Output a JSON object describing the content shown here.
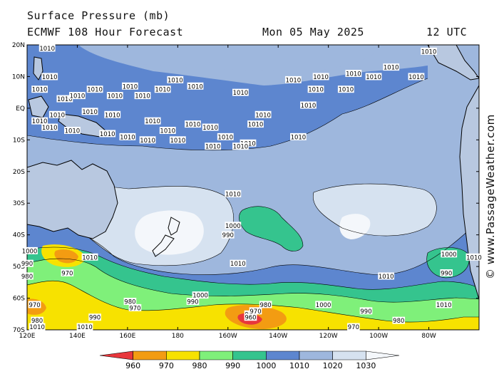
{
  "header": {
    "title": "Surface Pressure (mb)",
    "model": "ECMWF 108 Hour Forecast",
    "date": "Mon 05 May 2025",
    "time": "12 UTC"
  },
  "credit": "© www.PassageWeather.com",
  "lat_labels": [
    "20N",
    "10N",
    "EQ",
    "10S",
    "20S",
    "30S",
    "40S",
    "50S",
    "60S",
    "70S"
  ],
  "lon_labels": [
    "120E",
    "140E",
    "160E",
    "180",
    "160W",
    "140W",
    "120W",
    "100W",
    "80W"
  ],
  "colorbar": {
    "labels": [
      "960",
      "970",
      "980",
      "990",
      "1000",
      "1010",
      "1020",
      "1030"
    ],
    "colors": [
      "#e8373c",
      "#f39c12",
      "#f7e200",
      "#7ff07a",
      "#35c48e",
      "#5d86cf",
      "#9eb7dd",
      "#d6e2f0",
      "#f4f7fb"
    ]
  },
  "contour_labels": [
    {
      "text": "1010",
      "lon": 128,
      "lat": 19
    },
    {
      "text": "1010",
      "lon": 129,
      "lat": 10
    },
    {
      "text": "1010",
      "lon": 125,
      "lat": 6
    },
    {
      "text": "1010",
      "lon": 135,
      "lat": 3
    },
    {
      "text": "1010",
      "lon": 140,
      "lat": 4
    },
    {
      "text": "1010",
      "lon": 132,
      "lat": -2
    },
    {
      "text": "1010",
      "lon": 125,
      "lat": -4
    },
    {
      "text": "1010",
      "lon": 129,
      "lat": -6
    },
    {
      "text": "1010",
      "lon": 138,
      "lat": -7
    },
    {
      "text": "1010",
      "lon": 145,
      "lat": -1
    },
    {
      "text": "1010",
      "lon": 154,
      "lat": -2
    },
    {
      "text": "1010",
      "lon": 147,
      "lat": 6
    },
    {
      "text": "1010",
      "lon": 155,
      "lat": 4
    },
    {
      "text": "1010",
      "lon": 161,
      "lat": 7
    },
    {
      "text": "1010",
      "lon": 166,
      "lat": 4
    },
    {
      "text": "1010",
      "lon": 174,
      "lat": 6
    },
    {
      "text": "1010",
      "lon": 170,
      "lat": -4
    },
    {
      "text": "1010",
      "lon": 176,
      "lat": -7
    },
    {
      "text": "1010",
      "lon": 152,
      "lat": -8
    },
    {
      "text": "1010",
      "lon": 160,
      "lat": -9
    },
    {
      "text": "1010",
      "lon": 168,
      "lat": -10
    },
    {
      "text": "1010",
      "lon": 186,
      "lat": -5
    },
    {
      "text": "1010",
      "lon": 193,
      "lat": -6
    },
    {
      "text": "1010",
      "lon": 199,
      "lat": -9
    },
    {
      "text": "1010",
      "lon": 208,
      "lat": -11
    },
    {
      "text": "1010",
      "lon": 211,
      "lat": -5
    },
    {
      "text": "1010",
      "lon": 214,
      "lat": -2
    },
    {
      "text": "1010",
      "lon": 180,
      "lat": -10
    },
    {
      "text": "1010",
      "lon": 194,
      "lat": -12
    },
    {
      "text": "1010",
      "lon": 205,
      "lat": -12
    },
    {
      "text": "1010",
      "lon": 179,
      "lat": 9
    },
    {
      "text": "1010",
      "lon": 187,
      "lat": 7
    },
    {
      "text": "1010",
      "lon": 205,
      "lat": 5
    },
    {
      "text": "1010",
      "lon": 226,
      "lat": 9
    },
    {
      "text": "1010",
      "lon": 237,
      "lat": 10
    },
    {
      "text": "1010",
      "lon": 235,
      "lat": 6
    },
    {
      "text": "1010",
      "lon": 247,
      "lat": 6
    },
    {
      "text": "1010",
      "lon": 250,
      "lat": 11
    },
    {
      "text": "1010",
      "lon": 258,
      "lat": 10
    },
    {
      "text": "1010",
      "lon": 265,
      "lat": 13
    },
    {
      "text": "1010",
      "lon": 280,
      "lat": 18
    },
    {
      "text": "1010",
      "lon": 275,
      "lat": 10
    },
    {
      "text": "1010",
      "lon": 232,
      "lat": 1
    },
    {
      "text": "1010",
      "lon": 228,
      "lat": -9
    },
    {
      "text": "1010",
      "lon": 202,
      "lat": -27
    },
    {
      "text": "1010",
      "lon": 145,
      "lat": -47
    },
    {
      "text": "1010",
      "lon": 204,
      "lat": -49
    },
    {
      "text": "1010",
      "lon": 263,
      "lat": -53
    },
    {
      "text": "1010",
      "lon": 286,
      "lat": -62
    },
    {
      "text": "1010",
      "lon": 298,
      "lat": -47
    },
    {
      "text": "1010",
      "lon": 143,
      "lat": -69
    },
    {
      "text": "1010",
      "lon": 124,
      "lat": -69
    },
    {
      "text": "1000",
      "lon": 202,
      "lat": -37
    },
    {
      "text": "1000",
      "lon": 288,
      "lat": -46
    },
    {
      "text": "1000",
      "lon": 189,
      "lat": -59
    },
    {
      "text": "1000",
      "lon": 238,
      "lat": -62
    },
    {
      "text": "1000",
      "lon": 121,
      "lat": -45
    },
    {
      "text": "990",
      "lon": 200,
      "lat": -40
    },
    {
      "text": "990",
      "lon": 287,
      "lat": -52
    },
    {
      "text": "990",
      "lon": 186,
      "lat": -61
    },
    {
      "text": "990",
      "lon": 147,
      "lat": -66
    },
    {
      "text": "990",
      "lon": 255,
      "lat": -64
    },
    {
      "text": "990",
      "lon": 120,
      "lat": -49
    },
    {
      "text": "980",
      "lon": 161,
      "lat": -61
    },
    {
      "text": "980",
      "lon": 124,
      "lat": -67
    },
    {
      "text": "980",
      "lon": 215,
      "lat": -62
    },
    {
      "text": "980",
      "lon": 268,
      "lat": -67
    },
    {
      "text": "980",
      "lon": 209,
      "lat": -65
    },
    {
      "text": "970",
      "lon": 136,
      "lat": -52
    },
    {
      "text": "970",
      "lon": 163,
      "lat": -63
    },
    {
      "text": "970",
      "lon": 123,
      "lat": -62
    },
    {
      "text": "970",
      "lon": 211,
      "lat": -64
    },
    {
      "text": "970",
      "lon": 250,
      "lat": -69
    },
    {
      "text": "980",
      "lon": 120,
      "lat": -53
    },
    {
      "text": "960",
      "lon": 209,
      "lat": -66
    }
  ]
}
